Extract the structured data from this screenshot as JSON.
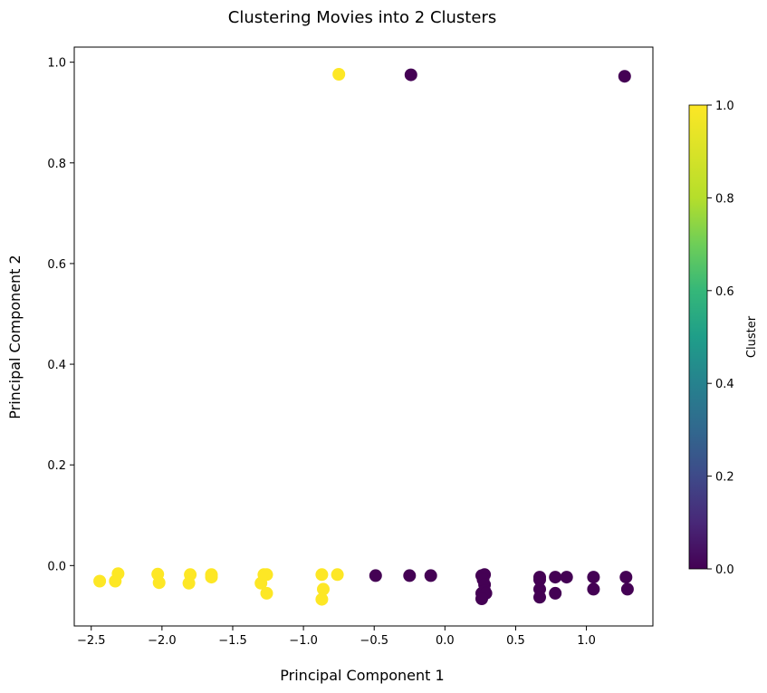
{
  "chart_data": {
    "type": "scatter",
    "title": "Clustering Movies into 2 Clusters",
    "xlabel": "Principal Component 1",
    "ylabel": "Principal Component 2",
    "xlim": [
      -2.62,
      1.47
    ],
    "ylim": [
      -0.12,
      1.03
    ],
    "xticks": [
      -2.5,
      -2.0,
      -1.5,
      -1.0,
      -0.5,
      0.0,
      0.5,
      1.0
    ],
    "xtick_labels": [
      "−2.5",
      "−2.0",
      "−1.5",
      "−1.0",
      "−0.5",
      "0.0",
      "0.5",
      "1.0"
    ],
    "yticks": [
      0.0,
      0.2,
      0.4,
      0.6,
      0.8,
      1.0
    ],
    "ytick_labels": [
      "0.0",
      "0.2",
      "0.4",
      "0.6",
      "0.8",
      "1.0"
    ],
    "grid": false,
    "colorbar": {
      "label": "Cluster",
      "colormap": "viridis",
      "range": [
        0.0,
        1.0
      ],
      "ticks": [
        0.0,
        0.2,
        0.4,
        0.6,
        0.8,
        1.0
      ],
      "tick_labels": [
        "0.0",
        "0.2",
        "0.4",
        "0.6",
        "0.8",
        "1.0"
      ]
    },
    "series": [
      {
        "cluster": 1,
        "color": "#fde725",
        "points": [
          [
            -2.44,
            -0.031
          ],
          [
            -2.33,
            -0.031
          ],
          [
            -2.31,
            -0.016
          ],
          [
            -2.03,
            -0.017
          ],
          [
            -2.02,
            -0.034
          ],
          [
            -1.8,
            -0.018
          ],
          [
            -1.81,
            -0.035
          ],
          [
            -1.65,
            -0.018
          ],
          [
            -1.65,
            -0.023
          ],
          [
            -1.3,
            -0.035
          ],
          [
            -1.28,
            -0.018
          ],
          [
            -1.26,
            -0.018
          ],
          [
            -1.26,
            -0.055
          ],
          [
            -0.87,
            -0.018
          ],
          [
            -0.86,
            -0.047
          ],
          [
            -0.87,
            -0.067
          ],
          [
            -0.76,
            -0.018
          ],
          [
            -0.75,
            0.976
          ]
        ]
      },
      {
        "cluster": 0,
        "color": "#440154",
        "points": [
          [
            -0.49,
            -0.02
          ],
          [
            -0.25,
            -0.02
          ],
          [
            -0.24,
            0.975
          ],
          [
            -0.1,
            -0.02
          ],
          [
            0.26,
            -0.02
          ],
          [
            0.28,
            -0.018
          ],
          [
            0.27,
            -0.028
          ],
          [
            0.28,
            -0.038
          ],
          [
            0.26,
            -0.055
          ],
          [
            0.28,
            -0.05
          ],
          [
            0.29,
            -0.055
          ],
          [
            0.26,
            -0.066
          ],
          [
            0.67,
            -0.023
          ],
          [
            0.67,
            -0.028
          ],
          [
            0.67,
            -0.047
          ],
          [
            0.67,
            -0.063
          ],
          [
            0.78,
            -0.023
          ],
          [
            0.78,
            -0.055
          ],
          [
            0.86,
            -0.023
          ],
          [
            1.05,
            -0.023
          ],
          [
            1.05,
            -0.047
          ],
          [
            1.27,
            0.972
          ],
          [
            1.28,
            -0.023
          ],
          [
            1.29,
            -0.047
          ]
        ]
      }
    ]
  }
}
